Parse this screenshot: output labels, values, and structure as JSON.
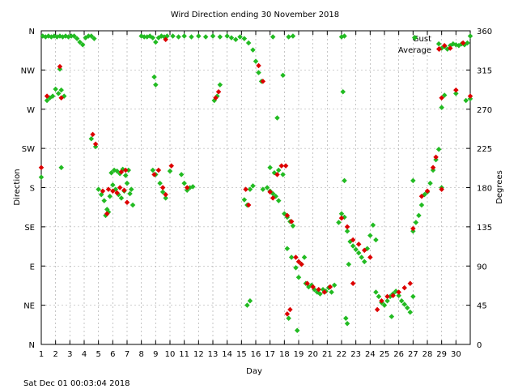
{
  "chart_data": {
    "type": "scatter",
    "title": "Wird Direction ending 30 November 2018",
    "xlabel": "Day",
    "ylabel": "Direction",
    "y2label": "Degrees",
    "footer": "Sat Dec 01 00:03:04 2018",
    "xlim": [
      1,
      31
    ],
    "ylim": [
      0,
      360
    ],
    "x_ticks": [
      1,
      2,
      3,
      4,
      5,
      6,
      7,
      8,
      9,
      10,
      11,
      12,
      13,
      14,
      15,
      16,
      17,
      18,
      19,
      20,
      21,
      22,
      23,
      24,
      25,
      26,
      27,
      28,
      29,
      30
    ],
    "y_ticks_left": [
      {
        "value": 0,
        "label": "N"
      },
      {
        "value": 45,
        "label": "NE"
      },
      {
        "value": 90,
        "label": "E"
      },
      {
        "value": 135,
        "label": "SE"
      },
      {
        "value": 180,
        "label": "S"
      },
      {
        "value": 225,
        "label": "SW"
      },
      {
        "value": 270,
        "label": "W"
      },
      {
        "value": 315,
        "label": "NW"
      },
      {
        "value": 360,
        "label": "N"
      }
    ],
    "y_ticks_right": [
      0,
      45,
      90,
      135,
      180,
      225,
      270,
      315,
      360
    ],
    "grid": true,
    "legend_position": "top-right",
    "series": [
      {
        "name": "Gust",
        "color": "#22bb22",
        "points": [
          [
            1.1,
            354
          ],
          [
            1.3,
            353
          ],
          [
            1.5,
            354
          ],
          [
            1.7,
            353
          ],
          [
            1.9,
            354
          ],
          [
            2.1,
            353
          ],
          [
            2.3,
            354
          ],
          [
            2.5,
            353
          ],
          [
            2.7,
            354
          ],
          [
            2.9,
            353
          ],
          [
            3.1,
            354
          ],
          [
            3.3,
            354
          ],
          [
            3.5,
            351
          ],
          [
            3.7,
            347
          ],
          [
            3.9,
            344
          ],
          [
            4.1,
            352
          ],
          [
            4.3,
            354
          ],
          [
            4.5,
            354
          ],
          [
            4.7,
            351
          ],
          [
            1.4,
            280
          ],
          [
            1.6,
            283
          ],
          [
            1.8,
            285
          ],
          [
            2.2,
            288
          ],
          [
            2.4,
            292
          ],
          [
            2.6,
            285
          ],
          [
            2.3,
            316
          ],
          [
            2.0,
            293
          ],
          [
            4.5,
            236
          ],
          [
            4.8,
            227
          ],
          [
            1.0,
            192
          ],
          [
            2.4,
            203
          ],
          [
            5.0,
            178
          ],
          [
            5.2,
            172
          ],
          [
            5.4,
            165
          ],
          [
            5.6,
            155
          ],
          [
            5.8,
            170
          ],
          [
            6.0,
            183
          ],
          [
            6.2,
            178
          ],
          [
            6.4,
            172
          ],
          [
            6.6,
            168
          ],
          [
            6.8,
            176
          ],
          [
            7.0,
            185
          ],
          [
            7.2,
            173
          ],
          [
            7.4,
            160
          ],
          [
            5.5,
            148
          ],
          [
            5.7,
            152
          ],
          [
            5.9,
            197
          ],
          [
            6.1,
            200
          ],
          [
            6.3,
            199
          ],
          [
            6.5,
            196
          ],
          [
            6.7,
            201
          ],
          [
            6.9,
            194
          ],
          [
            7.1,
            200
          ],
          [
            7.3,
            178
          ],
          [
            8.0,
            354
          ],
          [
            8.2,
            353
          ],
          [
            8.4,
            353
          ],
          [
            8.6,
            354
          ],
          [
            8.8,
            352
          ],
          [
            9.0,
            347
          ],
          [
            9.2,
            352
          ],
          [
            9.4,
            354
          ],
          [
            9.6,
            353
          ],
          [
            9.8,
            354
          ],
          [
            8.9,
            307
          ],
          [
            9.0,
            298
          ],
          [
            8.8,
            200
          ],
          [
            9.0,
            195
          ],
          [
            9.3,
            185
          ],
          [
            9.5,
            175
          ],
          [
            9.7,
            168
          ],
          [
            10.0,
            199
          ],
          [
            11.0,
            185
          ],
          [
            11.2,
            177
          ],
          [
            11.4,
            180
          ],
          [
            11.6,
            181
          ],
          [
            10.8,
            195
          ],
          [
            10.2,
            354
          ],
          [
            10.6,
            353
          ],
          [
            11.0,
            354
          ],
          [
            11.5,
            353
          ],
          [
            12.0,
            354
          ],
          [
            12.5,
            353
          ],
          [
            13.0,
            354
          ],
          [
            13.5,
            353
          ],
          [
            14.0,
            354
          ],
          [
            14.3,
            352
          ],
          [
            14.6,
            350
          ],
          [
            14.9,
            353
          ],
          [
            15.2,
            351
          ],
          [
            15.5,
            346
          ],
          [
            15.8,
            338
          ],
          [
            16.0,
            325
          ],
          [
            16.2,
            312
          ],
          [
            16.4,
            302
          ],
          [
            13.3,
            285
          ],
          [
            13.5,
            298
          ],
          [
            13.1,
            280
          ],
          [
            15.2,
            166
          ],
          [
            15.4,
            160
          ],
          [
            15.6,
            178
          ],
          [
            15.8,
            182
          ],
          [
            15.4,
            45
          ],
          [
            15.6,
            50
          ],
          [
            16.5,
            178
          ],
          [
            16.8,
            180
          ],
          [
            17.0,
            176
          ],
          [
            17.2,
            173
          ],
          [
            17.4,
            170
          ],
          [
            17.6,
            165
          ],
          [
            17.3,
            197
          ],
          [
            17.6,
            200
          ],
          [
            17.9,
            195
          ],
          [
            17.0,
            203
          ],
          [
            17.5,
            260
          ],
          [
            17.9,
            309
          ],
          [
            17.2,
            353
          ],
          [
            18.3,
            353
          ],
          [
            18.6,
            354
          ],
          [
            18.0,
            150
          ],
          [
            18.2,
            146
          ],
          [
            18.4,
            141
          ],
          [
            18.6,
            136
          ],
          [
            18.2,
            110
          ],
          [
            18.5,
            100
          ],
          [
            18.8,
            88
          ],
          [
            19.0,
            77
          ],
          [
            19.2,
            92
          ],
          [
            19.4,
            100
          ],
          [
            18.9,
            16
          ],
          [
            18.3,
            30
          ],
          [
            19.5,
            70
          ],
          [
            19.7,
            66
          ],
          [
            19.9,
            68
          ],
          [
            20.1,
            63
          ],
          [
            20.3,
            60
          ],
          [
            20.5,
            58
          ],
          [
            20.7,
            63
          ],
          [
            20.9,
            61
          ],
          [
            21.1,
            65
          ],
          [
            21.3,
            60
          ],
          [
            21.5,
            68
          ],
          [
            21.8,
            140
          ],
          [
            22.0,
            150
          ],
          [
            22.2,
            146
          ],
          [
            22.4,
            130
          ],
          [
            22.6,
            118
          ],
          [
            22.8,
            113
          ],
          [
            23.0,
            109
          ],
          [
            23.2,
            105
          ],
          [
            23.4,
            100
          ],
          [
            23.6,
            95
          ],
          [
            23.8,
            110
          ],
          [
            24.0,
            125
          ],
          [
            24.2,
            137
          ],
          [
            24.4,
            120
          ],
          [
            22.5,
            92
          ],
          [
            22.2,
            188
          ],
          [
            22.1,
            290
          ],
          [
            22.3,
            30
          ],
          [
            22.4,
            24
          ],
          [
            22.0,
            353
          ],
          [
            22.2,
            354
          ],
          [
            24.4,
            60
          ],
          [
            24.6,
            55
          ],
          [
            24.8,
            48
          ],
          [
            25.0,
            45
          ],
          [
            25.2,
            50
          ],
          [
            25.4,
            55
          ],
          [
            25.6,
            58
          ],
          [
            25.8,
            61
          ],
          [
            26.0,
            56
          ],
          [
            26.2,
            50
          ],
          [
            26.4,
            46
          ],
          [
            26.6,
            42
          ],
          [
            26.8,
            37
          ],
          [
            27.0,
            55
          ],
          [
            25.5,
            32
          ],
          [
            27.0,
            130
          ],
          [
            27.2,
            140
          ],
          [
            27.4,
            148
          ],
          [
            27.6,
            160
          ],
          [
            27.8,
            172
          ],
          [
            28.0,
            175
          ],
          [
            28.2,
            185
          ],
          [
            28.4,
            200
          ],
          [
            28.6,
            212
          ],
          [
            28.8,
            224
          ],
          [
            29.0,
            180
          ],
          [
            27.0,
            188
          ],
          [
            28.8,
            345
          ],
          [
            29.0,
            340
          ],
          [
            29.2,
            342
          ],
          [
            29.4,
            339
          ],
          [
            29.6,
            343
          ],
          [
            29.8,
            345
          ],
          [
            30.0,
            344
          ],
          [
            30.2,
            343
          ],
          [
            30.4,
            345
          ],
          [
            30.6,
            344
          ],
          [
            30.8,
            346
          ],
          [
            31.0,
            354
          ],
          [
            29.0,
            272
          ],
          [
            29.2,
            286
          ],
          [
            30.0,
            288
          ],
          [
            30.7,
            280
          ],
          [
            31.0,
            282
          ]
        ]
      },
      {
        "name": "Average",
        "color": "#dd0000",
        "points": [
          [
            1.0,
            203
          ],
          [
            1.4,
            285
          ],
          [
            2.3,
            319
          ],
          [
            2.4,
            283
          ],
          [
            4.6,
            241
          ],
          [
            4.8,
            230
          ],
          [
            5.3,
            176
          ],
          [
            5.7,
            178
          ],
          [
            6.0,
            176
          ],
          [
            6.3,
            174
          ],
          [
            6.5,
            180
          ],
          [
            6.8,
            177
          ],
          [
            7.0,
            163
          ],
          [
            5.6,
            150
          ],
          [
            6.6,
            198
          ],
          [
            6.9,
            200
          ],
          [
            8.9,
            195
          ],
          [
            9.2,
            200
          ],
          [
            9.5,
            180
          ],
          [
            9.7,
            172
          ],
          [
            10.1,
            205
          ],
          [
            11.2,
            180
          ],
          [
            9.7,
            350
          ],
          [
            13.2,
            283
          ],
          [
            13.4,
            290
          ],
          [
            16.2,
            320
          ],
          [
            16.5,
            302
          ],
          [
            17.0,
            175
          ],
          [
            17.2,
            168
          ],
          [
            17.5,
            195
          ],
          [
            17.8,
            205
          ],
          [
            15.3,
            178
          ],
          [
            15.5,
            160
          ],
          [
            18.2,
            148
          ],
          [
            18.5,
            141
          ],
          [
            18.1,
            205
          ],
          [
            18.8,
            100
          ],
          [
            19.0,
            95
          ],
          [
            19.2,
            92
          ],
          [
            18.2,
            35
          ],
          [
            18.4,
            40
          ],
          [
            19.6,
            70
          ],
          [
            20.0,
            66
          ],
          [
            20.4,
            63
          ],
          [
            20.8,
            60
          ],
          [
            21.2,
            66
          ],
          [
            22.0,
            145
          ],
          [
            22.4,
            135
          ],
          [
            22.8,
            120
          ],
          [
            23.2,
            115
          ],
          [
            23.6,
            108
          ],
          [
            24.0,
            100
          ],
          [
            22.8,
            70
          ],
          [
            24.5,
            40
          ],
          [
            24.8,
            50
          ],
          [
            25.2,
            55
          ],
          [
            25.6,
            56
          ],
          [
            26.0,
            60
          ],
          [
            26.4,
            65
          ],
          [
            26.8,
            70
          ],
          [
            27.0,
            133
          ],
          [
            27.6,
            170
          ],
          [
            28.0,
            176
          ],
          [
            28.4,
            203
          ],
          [
            28.6,
            215
          ],
          [
            29.0,
            178
          ],
          [
            29.0,
            283
          ],
          [
            29.2,
            343
          ],
          [
            29.6,
            340
          ],
          [
            30.0,
            292
          ],
          [
            30.5,
            346
          ],
          [
            31.0,
            285
          ]
        ]
      }
    ]
  }
}
